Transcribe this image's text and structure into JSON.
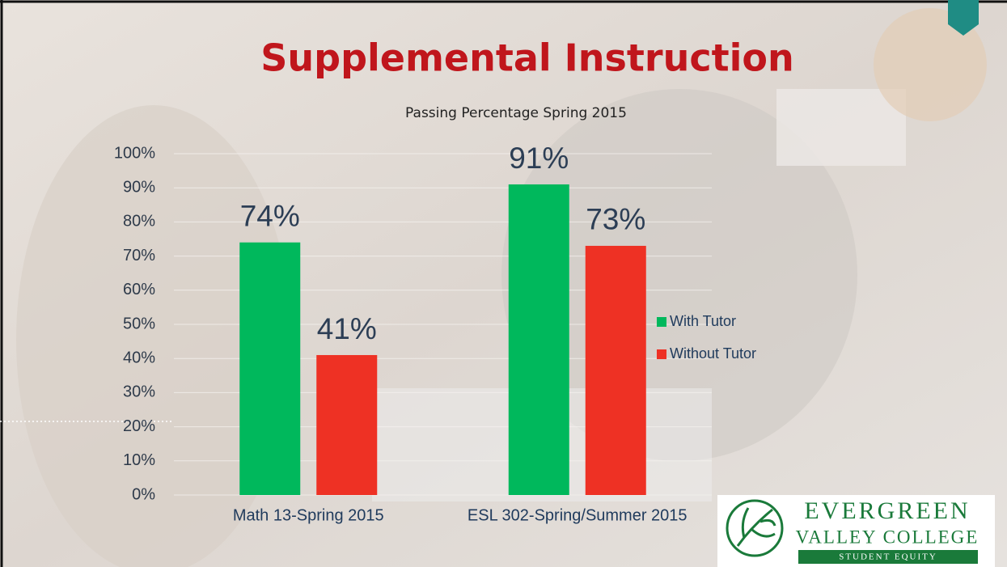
{
  "chart_data": {
    "type": "bar",
    "title": "Supplemental Instruction",
    "subtitle": "Passing Percentage Spring 2015",
    "categories": [
      "Math 13-Spring 2015",
      "ESL 302-Spring/Summer 2015"
    ],
    "series": [
      {
        "name": "With Tutor",
        "color": "#00b85c",
        "values": [
          74,
          91
        ],
        "value_labels": [
          "74%",
          "91%"
        ]
      },
      {
        "name": "Without Tutor",
        "color": "#ee3124",
        "values": [
          41,
          73
        ],
        "value_labels": [
          "41%",
          "73%"
        ]
      }
    ],
    "ylim": [
      0,
      100
    ],
    "yticks": [
      {
        "value": 0,
        "label": "0%"
      },
      {
        "value": 10,
        "label": "10%"
      },
      {
        "value": 20,
        "label": "20%"
      },
      {
        "value": 30,
        "label": "30%"
      },
      {
        "value": 40,
        "label": "40%"
      },
      {
        "value": 50,
        "label": "50%"
      },
      {
        "value": 60,
        "label": "60%"
      },
      {
        "value": 70,
        "label": "70%"
      },
      {
        "value": 80,
        "label": "80%"
      },
      {
        "value": 90,
        "label": "90%"
      },
      {
        "value": 100,
        "label": "100%"
      }
    ],
    "grid": true,
    "legend": "right"
  },
  "logo": {
    "line1": "EVERGREEN",
    "line2": "VALLEY COLLEGE",
    "line3": "STUDENT EQUITY"
  }
}
